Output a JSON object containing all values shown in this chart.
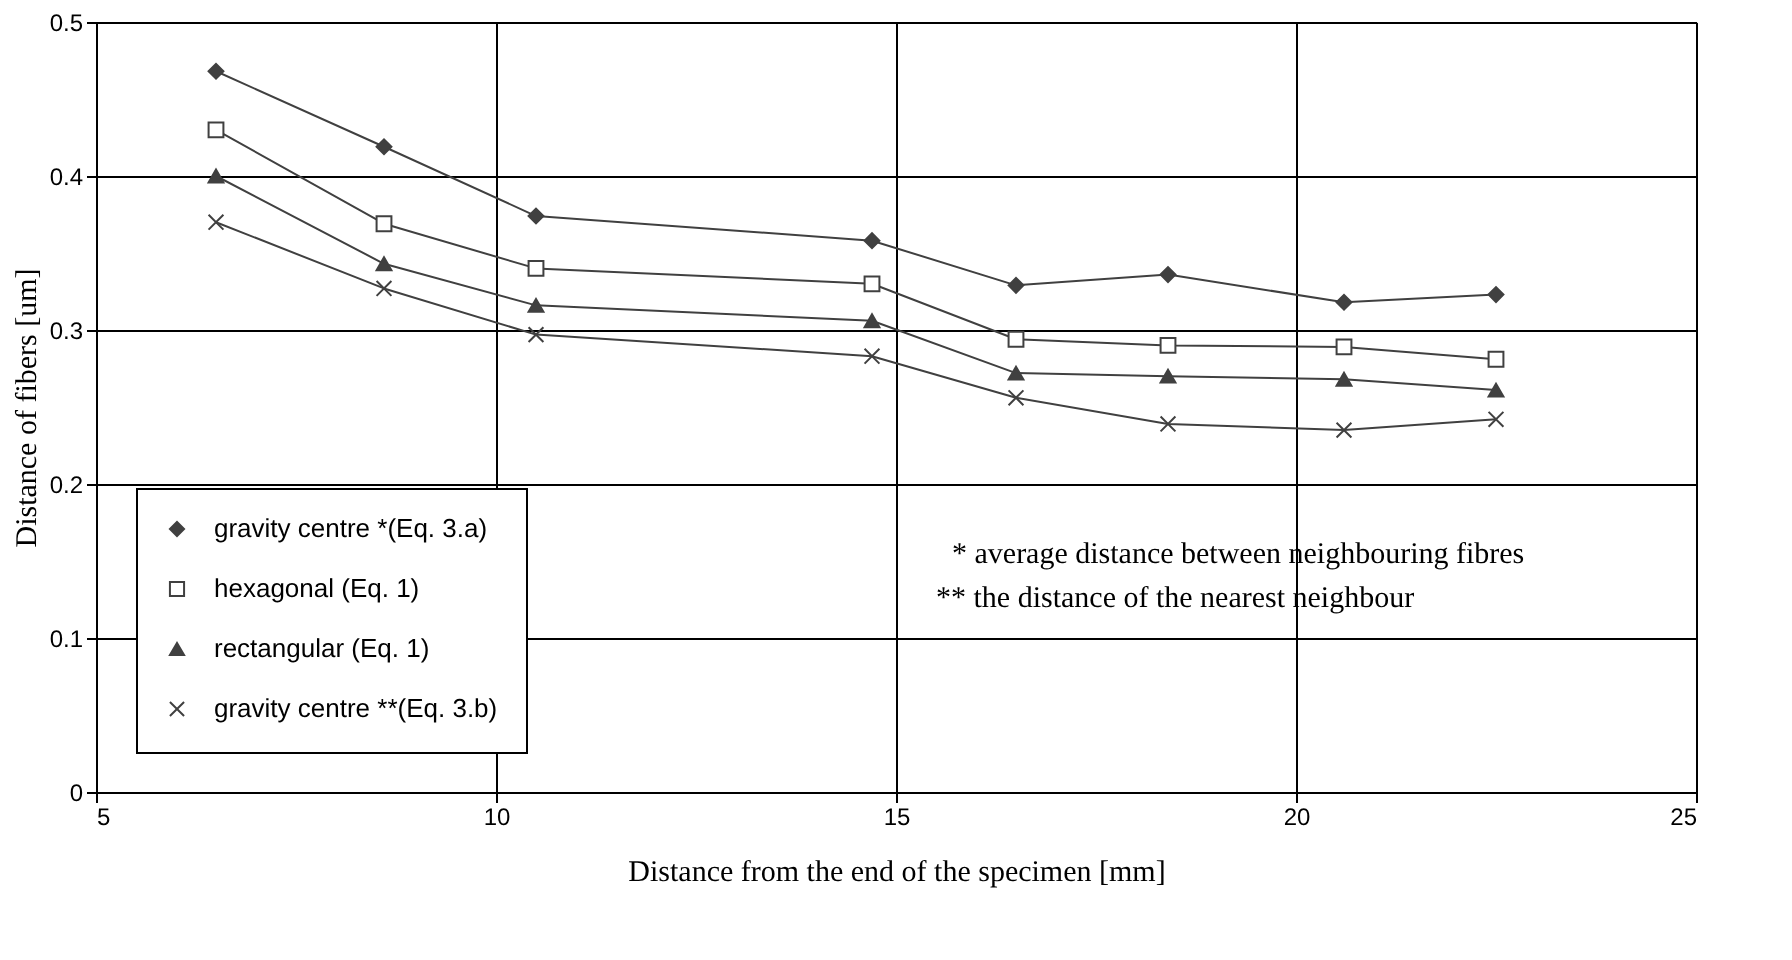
{
  "chart_data": {
    "type": "line",
    "xlabel": "Distance from the end of the specimen [mm]",
    "ylabel": "Distance of fibers [um]",
    "x": [
      6.5,
      8.6,
      10.5,
      14.7,
      16.5,
      18.4,
      20.6,
      22.5
    ],
    "series": [
      {
        "name": "gravity centre *(Eq. 3.a)",
        "color": "#404040",
        "marker": "diamond",
        "values": [
          0.468,
          0.419,
          0.374,
          0.358,
          0.329,
          0.336,
          0.318,
          0.323
        ]
      },
      {
        "name": "hexagonal (Eq. 1)",
        "color": "#404040",
        "marker": "square",
        "values": [
          0.43,
          0.369,
          0.34,
          0.33,
          0.294,
          0.29,
          0.289,
          0.281
        ]
      },
      {
        "name": "rectangular (Eq. 1)",
        "color": "#404040",
        "marker": "triangle",
        "values": [
          0.4,
          0.343,
          0.316,
          0.306,
          0.272,
          0.27,
          0.268,
          0.261
        ]
      },
      {
        "name": "gravity centre **(Eq. 3.b)",
        "color": "#404040",
        "marker": "cross",
        "values": [
          0.37,
          0.327,
          0.297,
          0.283,
          0.256,
          0.239,
          0.235,
          0.242
        ]
      }
    ],
    "xlim": [
      5,
      25
    ],
    "xticks": [
      5,
      10,
      15,
      20,
      25
    ],
    "ylim": [
      0,
      0.5
    ],
    "yticks": [
      0,
      0.1,
      0.2,
      0.3,
      0.4,
      0.5
    ],
    "grid": true,
    "legend": "bottom left",
    "line_style": "solid",
    "annotations": [
      "* average distance between neighbouring fibres",
      "** the distance of the nearest neighbour"
    ]
  }
}
